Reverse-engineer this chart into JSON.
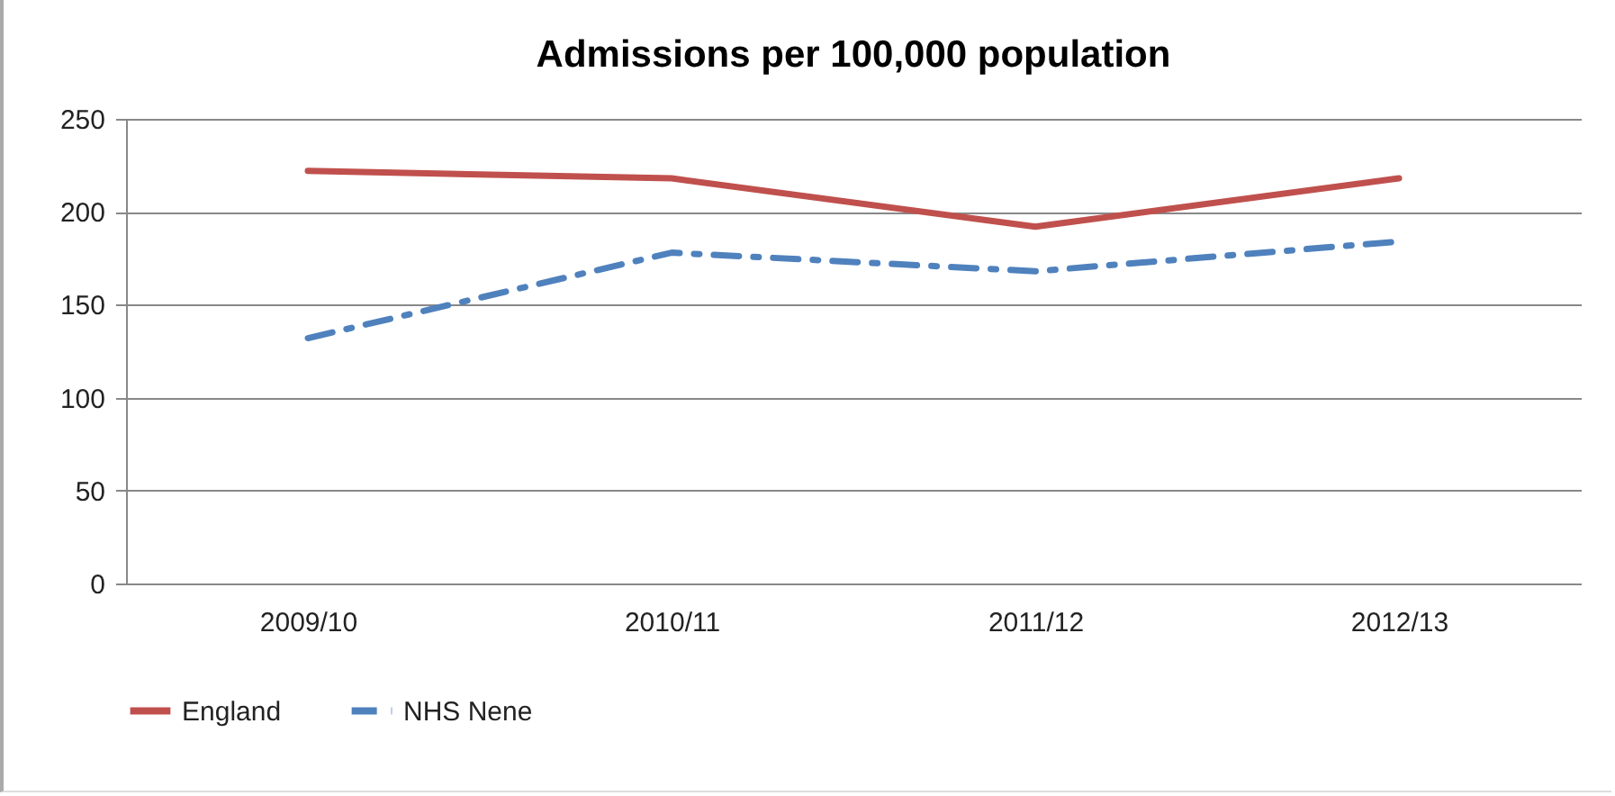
{
  "chart_data": {
    "type": "line",
    "title": "Admissions per 100,000 population",
    "categories": [
      "2009/10",
      "2010/11",
      "2011/12",
      "2012/13"
    ],
    "series": [
      {
        "name": "England",
        "color": "#c0504d",
        "values": [
          222,
          218,
          192,
          218
        ],
        "line_style": "solid"
      },
      {
        "name": "NHS Nene",
        "color": "#4f81bd",
        "values": [
          132,
          178,
          168,
          184
        ],
        "line_style": "dashed"
      }
    ],
    "ylim": [
      0,
      250
    ],
    "yticks": [
      0,
      50,
      100,
      150,
      200,
      250
    ],
    "grid": "y",
    "legend": "bottom",
    "marker": "none"
  }
}
